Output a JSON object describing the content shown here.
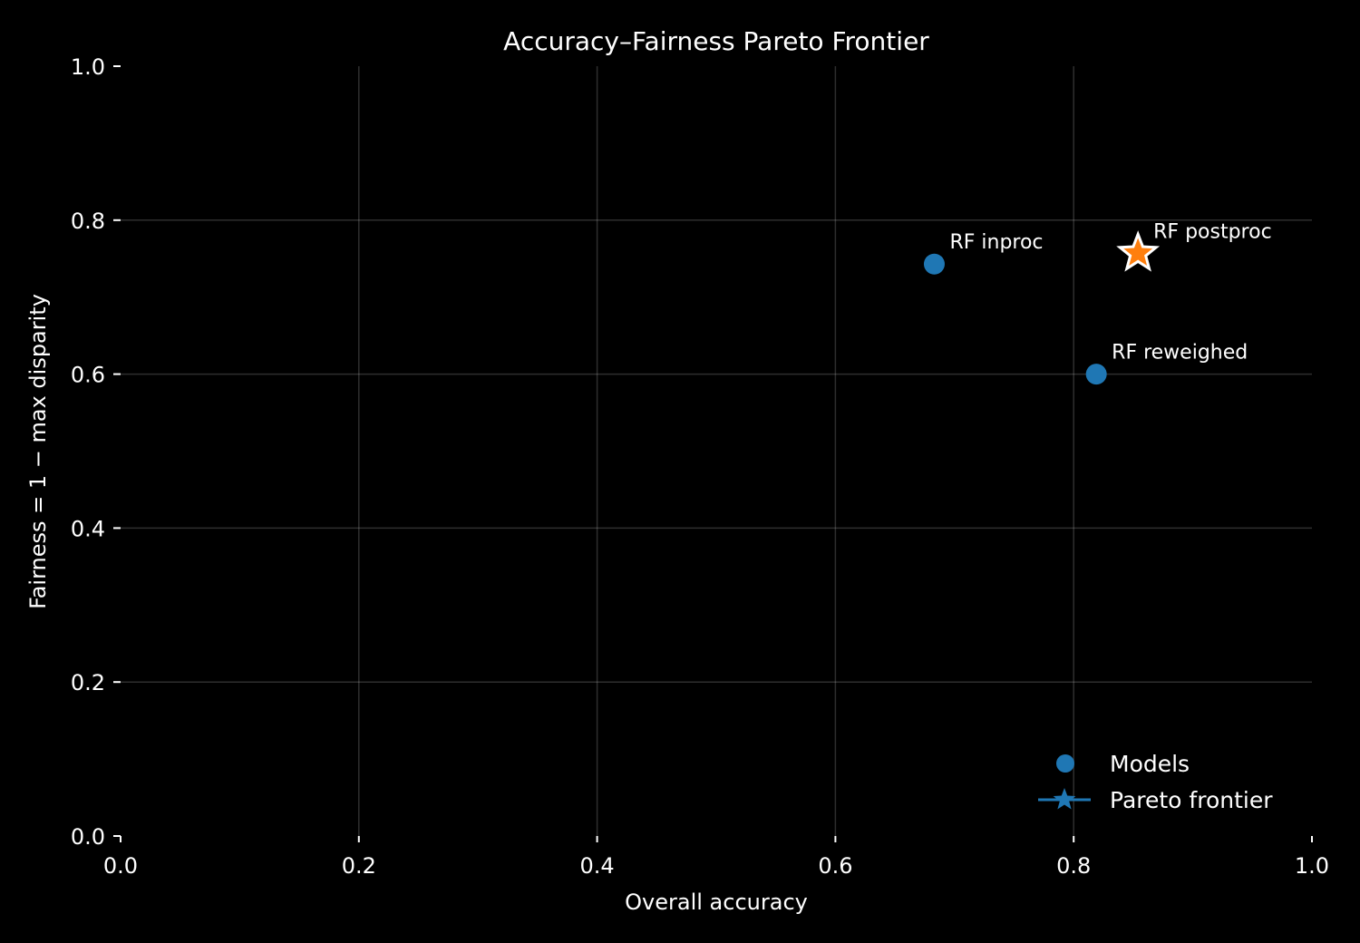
{
  "chart_data": {
    "type": "scatter",
    "title": "Accuracy–Fairness Pareto Frontier",
    "xlabel": "Overall accuracy",
    "ylabel": "Fairness = 1 − max disparity",
    "xlim": [
      0.0,
      1.0
    ],
    "ylim": [
      0.0,
      1.0
    ],
    "xticks": [
      "0.0",
      "0.2",
      "0.4",
      "0.6",
      "0.8",
      "1.0"
    ],
    "yticks": [
      "0.0",
      "0.2",
      "0.4",
      "0.6",
      "0.8",
      "1.0"
    ],
    "grid": true,
    "legend_position": "bottom-right",
    "series": [
      {
        "name": "Models",
        "marker": "circle",
        "color": "#1f77b4",
        "points": [
          {
            "label": "RF inproc",
            "x": 0.683,
            "y": 0.743
          },
          {
            "label": "RF reweighed",
            "x": 0.819,
            "y": 0.6
          }
        ]
      },
      {
        "name": "Pareto frontier",
        "marker": "star",
        "color": "#ff7f0e",
        "legend_color": "#1f77b4",
        "points": [
          {
            "label": "RF postproc",
            "x": 0.854,
            "y": 0.757
          }
        ]
      }
    ]
  }
}
